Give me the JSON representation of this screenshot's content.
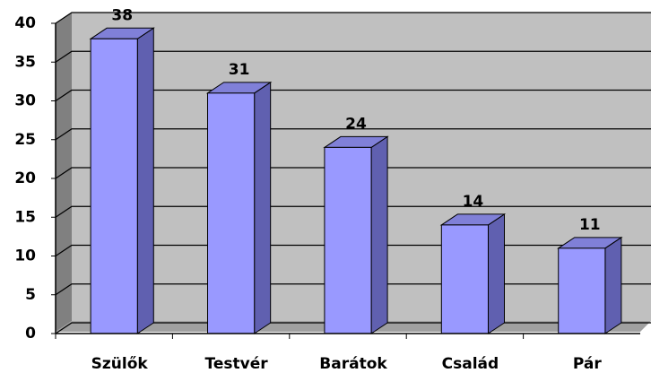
{
  "chart_data": {
    "type": "bar3d",
    "categories": [
      "Szülők",
      "Testvér",
      "Barátok",
      "Család",
      "Pár"
    ],
    "values": [
      38,
      31,
      24,
      14,
      11
    ],
    "color": "#9999ff",
    "ylim": [
      0,
      40
    ],
    "yticks": [
      0,
      5,
      10,
      15,
      20,
      25,
      30,
      35,
      40
    ],
    "grid": true
  }
}
